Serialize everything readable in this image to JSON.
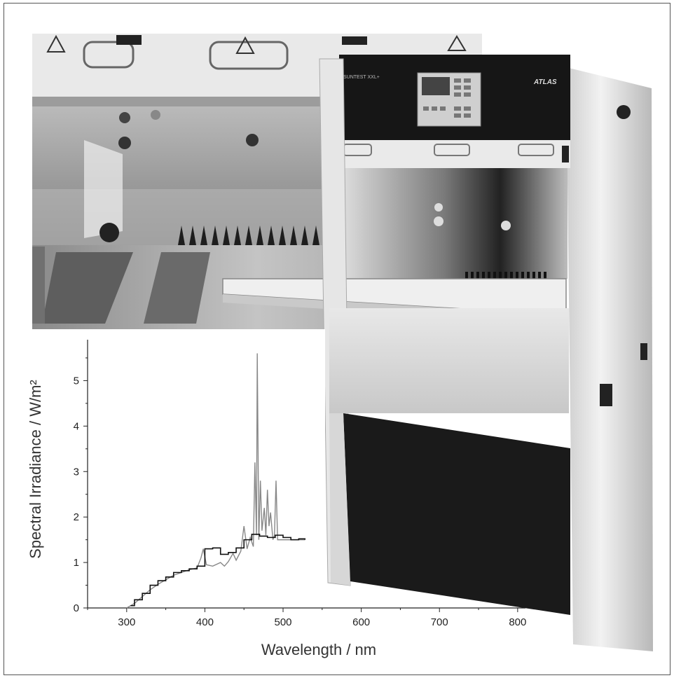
{
  "chart_data": {
    "type": "line",
    "xlabel": "Wavelength / nm",
    "ylabel": "Spectral Irradiance / W/m²",
    "xlim": [
      250,
      810
    ],
    "ylim": [
      0,
      5.9
    ],
    "x_ticks": [
      "300",
      "400",
      "500",
      "600",
      "700",
      "800"
    ],
    "y_ticks": [
      "0",
      "1",
      "2",
      "3",
      "4",
      "5"
    ],
    "grid": false,
    "legend": "none",
    "series": [
      {
        "style": "gray-line",
        "color": "#888888",
        "points": [
          [
            300,
            0.0
          ],
          [
            310,
            0.1
          ],
          [
            320,
            0.25
          ],
          [
            330,
            0.4
          ],
          [
            340,
            0.52
          ],
          [
            350,
            0.62
          ],
          [
            360,
            0.72
          ],
          [
            370,
            0.78
          ],
          [
            380,
            0.84
          ],
          [
            390,
            0.88
          ],
          [
            395,
            1.1
          ],
          [
            398,
            1.3
          ],
          [
            402,
            0.95
          ],
          [
            410,
            0.92
          ],
          [
            420,
            1.0
          ],
          [
            425,
            0.92
          ],
          [
            430,
            1.02
          ],
          [
            436,
            1.2
          ],
          [
            440,
            1.05
          ],
          [
            446,
            1.25
          ],
          [
            450,
            1.8
          ],
          [
            454,
            1.3
          ],
          [
            458,
            1.55
          ],
          [
            462,
            1.35
          ],
          [
            464,
            3.2
          ],
          [
            466,
            1.6
          ],
          [
            467,
            5.6
          ],
          [
            469,
            1.5
          ],
          [
            471,
            2.8
          ],
          [
            473,
            1.7
          ],
          [
            476,
            2.2
          ],
          [
            478,
            1.6
          ],
          [
            480,
            2.6
          ],
          [
            482,
            1.8
          ],
          [
            484,
            2.1
          ],
          [
            487,
            1.5
          ],
          [
            489,
            1.6
          ],
          [
            491,
            2.8
          ],
          [
            493,
            1.5
          ],
          [
            500,
            1.5
          ],
          [
            510,
            1.5
          ],
          [
            520,
            1.5
          ],
          [
            528,
            1.5
          ]
        ]
      },
      {
        "style": "black-step",
        "color": "#111111",
        "points": [
          [
            305,
            0.05
          ],
          [
            310,
            0.18
          ],
          [
            320,
            0.32
          ],
          [
            330,
            0.5
          ],
          [
            340,
            0.6
          ],
          [
            350,
            0.68
          ],
          [
            360,
            0.78
          ],
          [
            370,
            0.82
          ],
          [
            380,
            0.86
          ],
          [
            390,
            0.92
          ],
          [
            400,
            1.3
          ],
          [
            410,
            1.32
          ],
          [
            420,
            1.18
          ],
          [
            430,
            1.22
          ],
          [
            440,
            1.32
          ],
          [
            450,
            1.5
          ],
          [
            460,
            1.62
          ],
          [
            470,
            1.58
          ],
          [
            480,
            1.55
          ],
          [
            490,
            1.6
          ],
          [
            500,
            1.55
          ],
          [
            510,
            1.5
          ],
          [
            520,
            1.52
          ],
          [
            528,
            1.5
          ]
        ]
      }
    ]
  },
  "photo": {
    "device_panel_brand": "ATLAS",
    "device_model": "SUNTEST XXL+"
  }
}
